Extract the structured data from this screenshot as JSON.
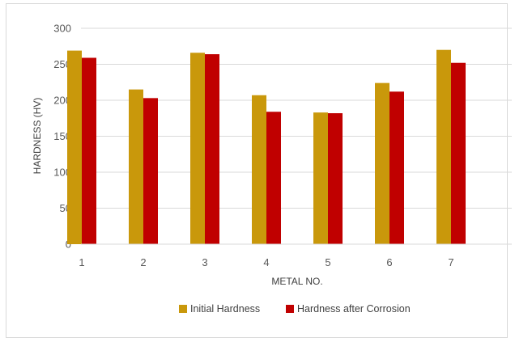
{
  "chart_data": {
    "type": "bar",
    "categories": [
      "1",
      "2",
      "3",
      "4",
      "5",
      "6",
      "7"
    ],
    "series": [
      {
        "name": "Initial Hardness",
        "color": "#C9980B",
        "values": [
          269,
          215,
          266,
          207,
          183,
          224,
          270
        ]
      },
      {
        "name": "Hardness after Corrosion",
        "color": "#C00000",
        "values": [
          259,
          203,
          264,
          184,
          182,
          212,
          252
        ]
      }
    ],
    "title": "",
    "xlabel": "METAL NO.",
    "ylabel": "HARDNESS (HV)",
    "ylim": [
      0,
      300
    ],
    "yticks": [
      "0",
      "50",
      "100",
      "150",
      "200",
      "250",
      "300"
    ],
    "grid": true,
    "legend": "bottom"
  }
}
